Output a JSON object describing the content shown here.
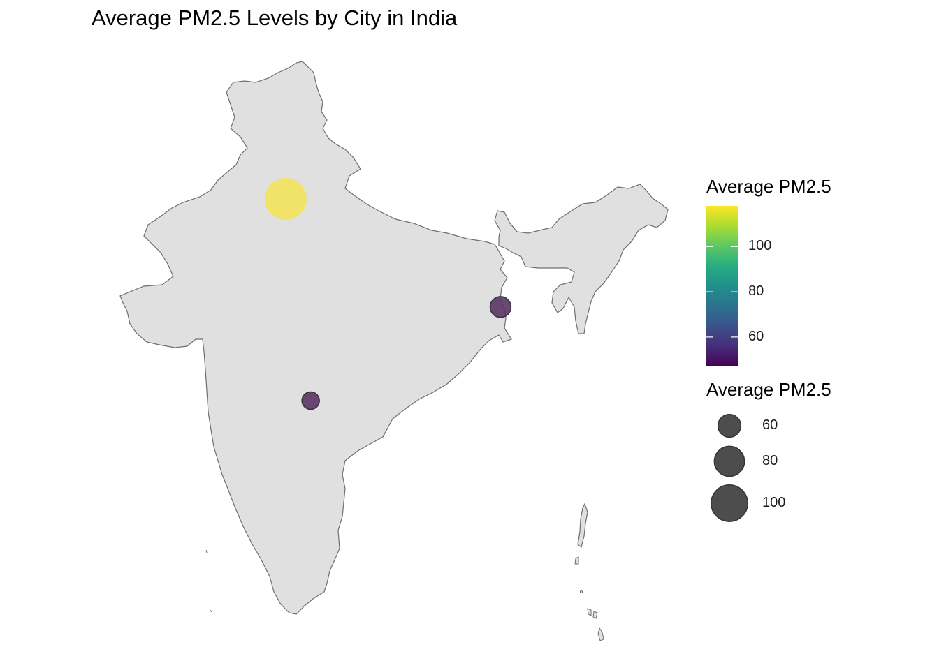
{
  "title": "Average PM2.5 Levels by City in India",
  "colors": {
    "land_fill": "#e0e0e0",
    "border": "#6e6e6e",
    "bubble_outline": "#333333",
    "size_key_fill": "#4d4d4d"
  },
  "color_legend": {
    "title": "Average PM2.5",
    "range": [
      47,
      118
    ],
    "palette": [
      "#440154",
      "#472d7b",
      "#3b528b",
      "#2c728e",
      "#21908c",
      "#27ad81",
      "#5dc863",
      "#aadc32",
      "#fde725"
    ],
    "ticks": [
      {
        "value": 60,
        "label": "60"
      },
      {
        "value": 80,
        "label": "80"
      },
      {
        "value": 100,
        "label": "100"
      }
    ]
  },
  "size_legend": {
    "title": "Average PM2.5",
    "entries": [
      {
        "value": 60,
        "label": "60"
      },
      {
        "value": 80,
        "label": "80"
      },
      {
        "value": 100,
        "label": "100"
      }
    ]
  },
  "chart_data": {
    "type": "scatter",
    "title": "Average PM2.5 Levels by City in India",
    "legend_placement": "right",
    "grid": false,
    "points": [
      {
        "lon": 77.2,
        "lat": 28.6,
        "value": 118,
        "color": "#f2e35a"
      },
      {
        "lon": 88.4,
        "lat": 22.6,
        "value": 55,
        "color": "#5a3566"
      },
      {
        "lon": 78.5,
        "lat": 17.4,
        "value": 47,
        "color": "#5a3566"
      }
    ]
  }
}
